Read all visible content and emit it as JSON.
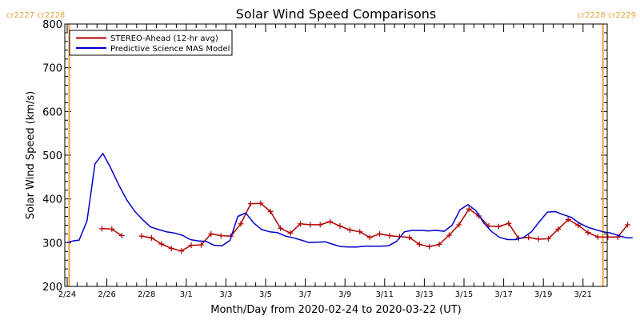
{
  "chart_data": {
    "type": "line",
    "title": "Solar Wind Speed Comparisons",
    "xlabel": "Month/Day from 2020-02-24 to 2020-03-22 (UT)",
    "ylabel": "Solar Wind Speed (km/s)",
    "ylim": [
      200,
      800
    ],
    "yticks": [
      200,
      300,
      400,
      500,
      600,
      700,
      800
    ],
    "xticks": [
      {
        "x": 0,
        "label": "2/24"
      },
      {
        "x": 2,
        "label": "2/26"
      },
      {
        "x": 4,
        "label": "2/28"
      },
      {
        "x": 6,
        "label": "3/1"
      },
      {
        "x": 8,
        "label": "3/3"
      },
      {
        "x": 10,
        "label": "3/5"
      },
      {
        "x": 12,
        "label": "3/7"
      },
      {
        "x": 14,
        "label": "3/9"
      },
      {
        "x": 16,
        "label": "3/11"
      },
      {
        "x": 18,
        "label": "3/13"
      },
      {
        "x": 20,
        "label": "3/15"
      },
      {
        "x": 22,
        "label": "3/17"
      },
      {
        "x": 24,
        "label": "3/19"
      },
      {
        "x": 26,
        "label": "3/21"
      }
    ],
    "xlim": [
      0,
      27.5
    ],
    "legend_position": "top-left",
    "carrington": {
      "left_label": "cr2227 cr2228",
      "right_label": "cr2228 cr2229",
      "left_x": 0.1,
      "right_x": 27.0
    },
    "colors": {
      "stereo": "#b30000",
      "model": "#0000cc",
      "carrington": "#f0a030"
    },
    "series": [
      {
        "name": "STEREO-Ahead (12-hr avg)",
        "color": "#b30000",
        "marker": "plus",
        "segments": [
          [
            [
              1.75,
              332
            ],
            [
              2.25,
              331
            ],
            [
              2.75,
              316
            ]
          ],
          [
            [
              3.75,
              315
            ],
            [
              4.25,
              311
            ],
            [
              4.75,
              297
            ],
            [
              5.25,
              287
            ],
            [
              5.75,
              281
            ],
            [
              6.25,
              294
            ],
            [
              6.75,
              295
            ],
            [
              7.25,
              320
            ],
            [
              7.75,
              316
            ],
            [
              8.25,
              315
            ],
            [
              8.75,
              343
            ],
            [
              9.25,
              389
            ],
            [
              9.75,
              390
            ],
            [
              10.25,
              371
            ],
            [
              10.75,
              333
            ],
            [
              11.25,
              322
            ],
            [
              11.75,
              343
            ],
            [
              12.25,
              341
            ],
            [
              12.75,
              341
            ],
            [
              13.25,
              348
            ],
            [
              13.75,
              338
            ],
            [
              14.25,
              329
            ],
            [
              14.75,
              325
            ],
            [
              15.25,
              312
            ],
            [
              15.75,
              320
            ],
            [
              16.25,
              316
            ],
            [
              16.75,
              314
            ],
            [
              17.25,
              312
            ],
            [
              17.75,
              296
            ],
            [
              18.25,
              291
            ],
            [
              18.75,
              296
            ],
            [
              19.25,
              317
            ],
            [
              19.75,
              341
            ],
            [
              20.25,
              377
            ],
            [
              20.75,
              361
            ],
            [
              21.25,
              338
            ],
            [
              21.75,
              337
            ],
            [
              22.25,
              344
            ],
            [
              22.75,
              310
            ],
            [
              23.25,
              312
            ],
            [
              23.75,
              308
            ],
            [
              24.25,
              309
            ],
            [
              24.75,
              331
            ],
            [
              25.25,
              353
            ],
            [
              25.75,
              340
            ],
            [
              26.25,
              323
            ],
            [
              26.75,
              313
            ],
            [
              27.25,
              313
            ],
            [
              27.75,
              313
            ],
            [
              28.25,
              341
            ]
          ]
        ]
      },
      {
        "name": "Predictive Science MAS Model",
        "color": "#0000cc",
        "marker": "none",
        "segments": [
          [
            [
              0,
              300
            ],
            [
              0.3,
              304
            ],
            [
              0.6,
              306
            ],
            [
              1.0,
              350
            ],
            [
              1.4,
              480
            ],
            [
              1.8,
              504
            ],
            [
              2.2,
              470
            ],
            [
              2.6,
              432
            ],
            [
              3.0,
              398
            ],
            [
              3.4,
              372
            ],
            [
              3.8,
              353
            ],
            [
              4.2,
              336
            ],
            [
              4.6,
              330
            ],
            [
              5.0,
              325
            ],
            [
              5.4,
              322
            ],
            [
              5.8,
              317
            ],
            [
              6.2,
              307
            ],
            [
              6.6,
              304
            ],
            [
              7.0,
              303
            ],
            [
              7.4,
              294
            ],
            [
              7.8,
              293
            ],
            [
              8.2,
              305
            ],
            [
              8.6,
              360
            ],
            [
              9.0,
              368
            ],
            [
              9.4,
              345
            ],
            [
              9.8,
              330
            ],
            [
              10.2,
              325
            ],
            [
              10.6,
              323
            ],
            [
              11.0,
              315
            ],
            [
              11.4,
              311
            ],
            [
              11.8,
              306
            ],
            [
              12.2,
              300
            ],
            [
              12.6,
              301
            ],
            [
              13.0,
              302
            ],
            [
              13.4,
              296
            ],
            [
              13.8,
              291
            ],
            [
              14.2,
              290
            ],
            [
              14.6,
              290
            ],
            [
              15.0,
              292
            ],
            [
              15.4,
              292
            ],
            [
              15.8,
              292
            ],
            [
              16.2,
              293
            ],
            [
              16.6,
              303
            ],
            [
              17.0,
              325
            ],
            [
              17.4,
              328
            ],
            [
              17.8,
              328
            ],
            [
              18.2,
              327
            ],
            [
              18.6,
              328
            ],
            [
              19.0,
              326
            ],
            [
              19.4,
              340
            ],
            [
              19.8,
              375
            ],
            [
              20.2,
              387
            ],
            [
              20.6,
              373
            ],
            [
              21.0,
              345
            ],
            [
              21.4,
              325
            ],
            [
              21.8,
              312
            ],
            [
              22.2,
              307
            ],
            [
              22.6,
              307
            ],
            [
              23.0,
              312
            ],
            [
              23.4,
              325
            ],
            [
              23.8,
              348
            ],
            [
              24.2,
              370
            ],
            [
              24.6,
              371
            ],
            [
              25.0,
              364
            ],
            [
              25.4,
              358
            ],
            [
              25.8,
              345
            ],
            [
              26.2,
              336
            ],
            [
              26.6,
              330
            ],
            [
              27.0,
              325
            ],
            [
              27.4,
              322
            ],
            [
              27.8,
              316
            ],
            [
              28.2,
              311
            ],
            [
              28.5,
              311
            ]
          ]
        ]
      }
    ]
  }
}
